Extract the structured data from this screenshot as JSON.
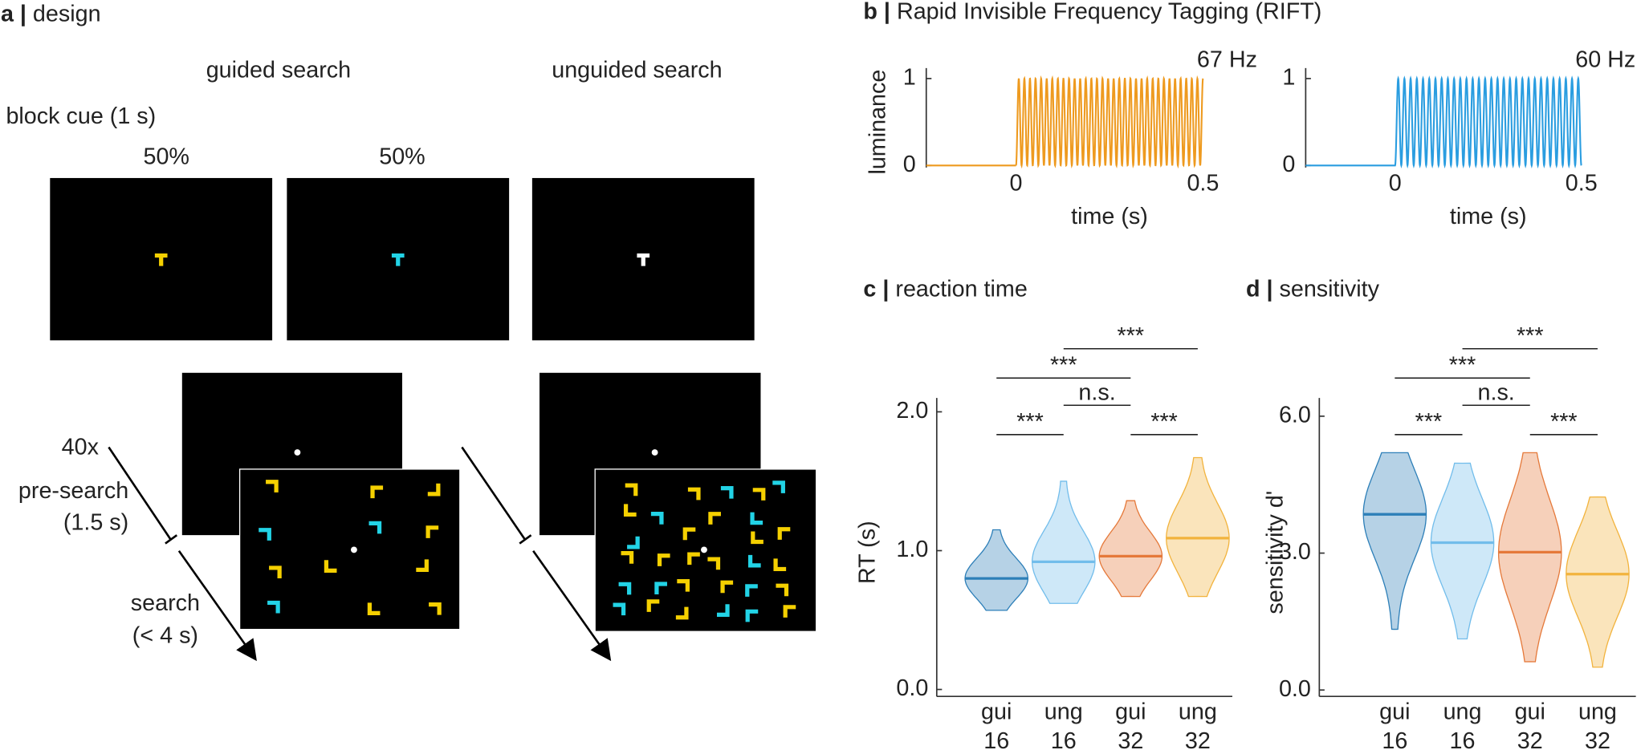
{
  "panel_a": {
    "label": "a |",
    "title": "design",
    "guided": "guided search",
    "unguided": "unguided search",
    "block_cue": "block cue (1 s)",
    "percents": [
      "50%",
      "50%"
    ],
    "repeat": "40x",
    "pre_search": [
      "pre-search",
      "(1.5 s)"
    ],
    "search": [
      "search",
      "(< 4 s)"
    ]
  },
  "panel_b": {
    "label": "b |",
    "title": "Rapid Invisible Frequency Tagging (RIFT)"
  },
  "chart_data": [
    {
      "type": "line",
      "ylabel": "luminance",
      "xlabel": "time (s)",
      "annotation": "67 Hz",
      "frequency": 67,
      "color": "#ee9a1f",
      "xlim": [
        -0.24,
        0.5
      ],
      "ylim": [
        0,
        1
      ],
      "xticks": [
        0,
        0.5
      ],
      "yticks": [
        0,
        1
      ]
    },
    {
      "type": "line",
      "xlabel": "time (s)",
      "annotation": "60 Hz",
      "frequency": 60,
      "color": "#2a9de0",
      "xlim": [
        -0.24,
        0.5
      ],
      "ylim": [
        0,
        1
      ],
      "xticks": [
        0,
        0.5
      ],
      "yticks": [
        0,
        1
      ]
    },
    {
      "type": "violin",
      "panel_label": "c |",
      "title": "reaction time",
      "ylabel": "RT (s)",
      "categories": [
        [
          "gui",
          "16"
        ],
        [
          "ung",
          "16"
        ],
        [
          "gui",
          "32"
        ],
        [
          "ung",
          "32"
        ]
      ],
      "colors": [
        "#2d7fb8",
        "#72bdeb",
        "#e5793a",
        "#f2b33d"
      ],
      "median": [
        0.8,
        0.92,
        0.96,
        1.09
      ],
      "min": [
        0.57,
        0.62,
        0.67,
        0.67
      ],
      "max": [
        1.15,
        1.5,
        1.36,
        1.67
      ],
      "ylim": [
        -0.05,
        2.1
      ],
      "yticks": [
        {
          "value": 0,
          "label": "0.0"
        },
        {
          "value": 1,
          "label": "1.0"
        },
        {
          "value": 2,
          "label": "2.0"
        }
      ],
      "comparisons": [
        {
          "pair": [
            0,
            1
          ],
          "label": "***"
        },
        {
          "pair": [
            2,
            3
          ],
          "label": "***"
        },
        {
          "pair": [
            1,
            2
          ],
          "label": "n.s."
        },
        {
          "pair": [
            0,
            2
          ],
          "label": "***"
        },
        {
          "pair": [
            1,
            3
          ],
          "label": "***"
        }
      ]
    },
    {
      "type": "violin",
      "panel_label": "d |",
      "title": "sensitivity",
      "ylabel": "sensitivity d'",
      "categories": [
        [
          "gui",
          "16"
        ],
        [
          "ung",
          "16"
        ],
        [
          "gui",
          "32"
        ],
        [
          "ung",
          "32"
        ]
      ],
      "colors": [
        "#2d7fb8",
        "#72bdeb",
        "#e5793a",
        "#f2b33d"
      ],
      "median": [
        3.85,
        3.23,
        3.02,
        2.54
      ],
      "min": [
        1.33,
        1.12,
        0.62,
        0.5
      ],
      "max": [
        5.2,
        4.97,
        5.2,
        4.23
      ],
      "ylim": [
        -0.14,
        6.4
      ],
      "yticks": [
        {
          "value": 0,
          "label": "0.0"
        },
        {
          "value": 3,
          "label": "3.0"
        },
        {
          "value": 6,
          "label": "6.0"
        }
      ],
      "comparisons": [
        {
          "pair": [
            0,
            1
          ],
          "label": "***"
        },
        {
          "pair": [
            2,
            3
          ],
          "label": "***"
        },
        {
          "pair": [
            1,
            2
          ],
          "label": "n.s."
        },
        {
          "pair": [
            0,
            2
          ],
          "label": "***"
        },
        {
          "pair": [
            1,
            3
          ],
          "label": "***"
        }
      ]
    }
  ]
}
